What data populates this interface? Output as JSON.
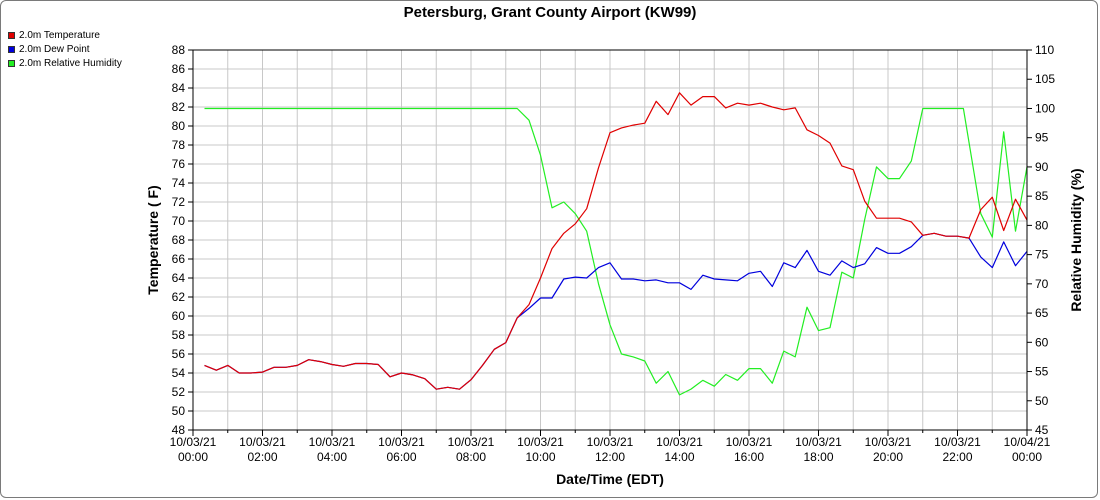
{
  "chart_data": {
    "type": "line",
    "title": "Petersburg, Grant County Airport (KW99)",
    "xlabel": "Date/Time (EDT)",
    "ylabel_left": "Temperature ( F)",
    "ylabel_right": "Relative Humidity (%)",
    "ylim_left": [
      48,
      88
    ],
    "ylim_right": [
      45,
      110
    ],
    "grid": true,
    "legend_placement": "top-left outside",
    "x_ticks": [
      {
        "date": "10/03/21",
        "time": "00:00",
        "hour": 0
      },
      {
        "date": "10/03/21",
        "time": "02:00",
        "hour": 2
      },
      {
        "date": "10/03/21",
        "time": "04:00",
        "hour": 4
      },
      {
        "date": "10/03/21",
        "time": "06:00",
        "hour": 6
      },
      {
        "date": "10/03/21",
        "time": "08:00",
        "hour": 8
      },
      {
        "date": "10/03/21",
        "time": "10:00",
        "hour": 10
      },
      {
        "date": "10/03/21",
        "time": "12:00",
        "hour": 12
      },
      {
        "date": "10/03/21",
        "time": "14:00",
        "hour": 14
      },
      {
        "date": "10/03/21",
        "time": "16:00",
        "hour": 16
      },
      {
        "date": "10/03/21",
        "time": "18:00",
        "hour": 18
      },
      {
        "date": "10/03/21",
        "time": "20:00",
        "hour": 20
      },
      {
        "date": "10/03/21",
        "time": "22:00",
        "hour": 22
      },
      {
        "date": "10/04/21",
        "time": "00:00",
        "hour": 24
      }
    ],
    "y_ticks_left": [
      48,
      50,
      52,
      54,
      56,
      58,
      60,
      62,
      64,
      66,
      68,
      70,
      72,
      74,
      76,
      78,
      80,
      82,
      84,
      86,
      88
    ],
    "y_ticks_right": [
      45,
      50,
      55,
      60,
      65,
      70,
      75,
      80,
      85,
      90,
      95,
      100,
      105,
      110
    ],
    "series": [
      {
        "name": "2.0m Temperature",
        "color": "#e00000",
        "axis": "left",
        "points": [
          [
            0.33,
            54.8
          ],
          [
            0.67,
            54.3
          ],
          [
            1.0,
            54.8
          ],
          [
            1.33,
            54.0
          ],
          [
            1.67,
            54.0
          ],
          [
            2.0,
            54.1
          ],
          [
            2.33,
            54.6
          ],
          [
            2.67,
            54.6
          ],
          [
            3.0,
            54.8
          ],
          [
            3.33,
            55.4
          ],
          [
            3.67,
            55.2
          ],
          [
            4.0,
            54.9
          ],
          [
            4.33,
            54.7
          ],
          [
            4.67,
            55.0
          ],
          [
            5.0,
            55.0
          ],
          [
            5.33,
            54.9
          ],
          [
            5.67,
            53.6
          ],
          [
            6.0,
            54.0
          ],
          [
            6.33,
            53.8
          ],
          [
            6.67,
            53.4
          ],
          [
            7.0,
            52.3
          ],
          [
            7.33,
            52.5
          ],
          [
            7.67,
            52.3
          ],
          [
            8.0,
            53.3
          ],
          [
            8.33,
            54.8
          ],
          [
            8.67,
            56.5
          ],
          [
            9.0,
            57.2
          ],
          [
            9.33,
            59.8
          ],
          [
            9.67,
            61.2
          ],
          [
            10.0,
            64.0
          ],
          [
            10.33,
            67.1
          ],
          [
            10.67,
            68.7
          ],
          [
            11.0,
            69.7
          ],
          [
            11.33,
            71.3
          ],
          [
            11.67,
            75.6
          ],
          [
            12.0,
            79.3
          ],
          [
            12.33,
            79.8
          ],
          [
            12.67,
            80.1
          ],
          [
            13.0,
            80.3
          ],
          [
            13.33,
            82.6
          ],
          [
            13.67,
            81.2
          ],
          [
            14.0,
            83.5
          ],
          [
            14.33,
            82.2
          ],
          [
            14.67,
            83.1
          ],
          [
            15.0,
            83.1
          ],
          [
            15.33,
            81.9
          ],
          [
            15.67,
            82.4
          ],
          [
            16.0,
            82.2
          ],
          [
            16.33,
            82.4
          ],
          [
            16.67,
            82.0
          ],
          [
            17.0,
            81.7
          ],
          [
            17.33,
            81.9
          ],
          [
            17.67,
            79.6
          ],
          [
            18.0,
            79.0
          ],
          [
            18.33,
            78.2
          ],
          [
            18.67,
            75.8
          ],
          [
            19.0,
            75.4
          ],
          [
            19.33,
            72.1
          ],
          [
            19.67,
            70.3
          ],
          [
            20.0,
            70.3
          ],
          [
            20.33,
            70.3
          ],
          [
            20.67,
            69.9
          ],
          [
            21.0,
            68.5
          ],
          [
            21.33,
            68.7
          ],
          [
            21.67,
            68.4
          ],
          [
            22.0,
            68.4
          ],
          [
            22.33,
            68.2
          ],
          [
            22.67,
            71.2
          ],
          [
            23.0,
            72.5
          ],
          [
            23.33,
            69.0
          ],
          [
            23.67,
            72.3
          ],
          [
            24.0,
            70.1
          ]
        ]
      },
      {
        "name": "2.0m Dew Point",
        "color": "#0000dd",
        "axis": "left",
        "points": [
          [
            0.33,
            54.8
          ],
          [
            0.67,
            54.3
          ],
          [
            1.0,
            54.8
          ],
          [
            1.33,
            54.0
          ],
          [
            1.67,
            54.0
          ],
          [
            2.0,
            54.1
          ],
          [
            2.33,
            54.6
          ],
          [
            2.67,
            54.6
          ],
          [
            3.0,
            54.8
          ],
          [
            3.33,
            55.4
          ],
          [
            3.67,
            55.2
          ],
          [
            4.0,
            54.9
          ],
          [
            4.33,
            54.7
          ],
          [
            4.67,
            55.0
          ],
          [
            5.0,
            55.0
          ],
          [
            5.33,
            54.9
          ],
          [
            5.67,
            53.6
          ],
          [
            6.0,
            54.0
          ],
          [
            6.33,
            53.8
          ],
          [
            6.67,
            53.4
          ],
          [
            7.0,
            52.3
          ],
          [
            7.33,
            52.5
          ],
          [
            7.67,
            52.3
          ],
          [
            8.0,
            53.3
          ],
          [
            8.33,
            54.8
          ],
          [
            8.67,
            56.5
          ],
          [
            9.0,
            57.2
          ],
          [
            9.33,
            59.8
          ],
          [
            9.67,
            60.8
          ],
          [
            10.0,
            61.9
          ],
          [
            10.33,
            61.9
          ],
          [
            10.67,
            63.9
          ],
          [
            11.0,
            64.1
          ],
          [
            11.33,
            64.0
          ],
          [
            11.67,
            65.1
          ],
          [
            12.0,
            65.6
          ],
          [
            12.33,
            63.9
          ],
          [
            12.67,
            63.9
          ],
          [
            13.0,
            63.7
          ],
          [
            13.33,
            63.8
          ],
          [
            13.67,
            63.5
          ],
          [
            14.0,
            63.5
          ],
          [
            14.33,
            62.8
          ],
          [
            14.67,
            64.3
          ],
          [
            15.0,
            63.9
          ],
          [
            15.33,
            63.8
          ],
          [
            15.67,
            63.7
          ],
          [
            16.0,
            64.5
          ],
          [
            16.33,
            64.7
          ],
          [
            16.67,
            63.1
          ],
          [
            17.0,
            65.6
          ],
          [
            17.33,
            65.1
          ],
          [
            17.67,
            66.9
          ],
          [
            18.0,
            64.7
          ],
          [
            18.33,
            64.3
          ],
          [
            18.67,
            65.8
          ],
          [
            19.0,
            65.1
          ],
          [
            19.33,
            65.5
          ],
          [
            19.67,
            67.2
          ],
          [
            20.0,
            66.6
          ],
          [
            20.33,
            66.6
          ],
          [
            20.67,
            67.3
          ],
          [
            21.0,
            68.5
          ],
          [
            21.33,
            68.7
          ],
          [
            21.67,
            68.4
          ],
          [
            22.0,
            68.4
          ],
          [
            22.33,
            68.2
          ],
          [
            22.67,
            66.2
          ],
          [
            23.0,
            65.1
          ],
          [
            23.33,
            67.8
          ],
          [
            23.67,
            65.3
          ],
          [
            24.0,
            66.8
          ]
        ]
      },
      {
        "name": "2.0m Relative Humidity",
        "color": "#22ee22",
        "axis": "right",
        "points": [
          [
            0.33,
            100
          ],
          [
            9.33,
            100
          ],
          [
            9.67,
            98
          ],
          [
            10.0,
            92
          ],
          [
            10.33,
            83
          ],
          [
            10.67,
            84
          ],
          [
            11.0,
            82
          ],
          [
            11.33,
            79
          ],
          [
            11.67,
            70
          ],
          [
            12.0,
            63
          ],
          [
            12.33,
            58
          ],
          [
            12.67,
            57.5
          ],
          [
            13.0,
            56.8
          ],
          [
            13.33,
            53
          ],
          [
            13.67,
            55
          ],
          [
            14.0,
            51
          ],
          [
            14.33,
            52
          ],
          [
            14.67,
            53.5
          ],
          [
            15.0,
            52.5
          ],
          [
            15.33,
            54.5
          ],
          [
            15.67,
            53.5
          ],
          [
            16.0,
            55.5
          ],
          [
            16.33,
            55.5
          ],
          [
            16.67,
            53
          ],
          [
            17.0,
            58.5
          ],
          [
            17.33,
            57.5
          ],
          [
            17.67,
            66
          ],
          [
            18.0,
            62
          ],
          [
            18.33,
            62.5
          ],
          [
            18.67,
            72
          ],
          [
            19.0,
            71
          ],
          [
            19.33,
            81
          ],
          [
            19.67,
            90
          ],
          [
            20.0,
            88
          ],
          [
            20.33,
            88
          ],
          [
            20.67,
            91
          ],
          [
            21.0,
            100
          ],
          [
            22.17,
            100
          ],
          [
            22.67,
            82
          ],
          [
            23.0,
            78
          ],
          [
            23.33,
            96
          ],
          [
            23.67,
            79
          ],
          [
            24.0,
            90
          ]
        ]
      }
    ]
  }
}
